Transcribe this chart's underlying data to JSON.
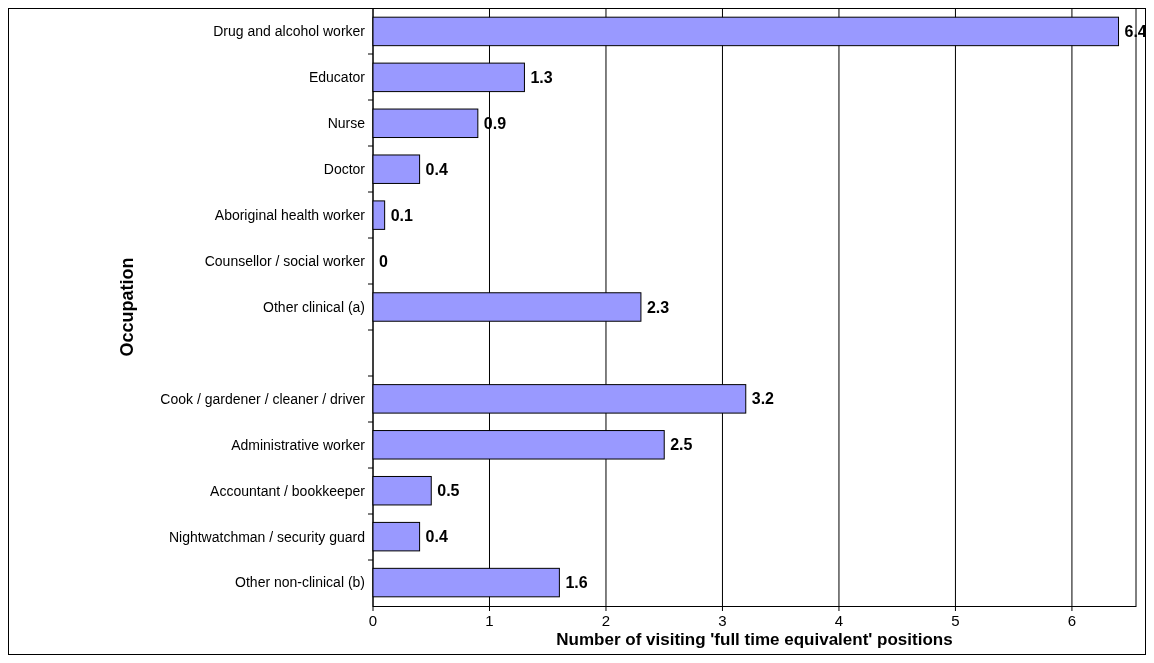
{
  "chart_data": {
    "type": "bar",
    "orientation": "horizontal",
    "xlabel": "Number of visiting 'full time equivalent' positions",
    "ylabel": "Occupation",
    "categories": [
      "Drug and alcohol worker",
      "Educator",
      "Nurse",
      "Doctor",
      "Aboriginal health worker",
      "Counsellor / social worker",
      "Other clinical (a)",
      null,
      "Cook / gardener / cleaner / driver",
      "Administrative worker",
      "Accountant / bookkeeper",
      "Nightwatchman / security guard",
      "Other non-clinical (b)"
    ],
    "values": [
      6.4,
      1.3,
      0.9,
      0.4,
      0.1,
      0,
      2.3,
      null,
      3.2,
      2.5,
      0.5,
      0.4,
      1.6
    ],
    "color": "#9999ff",
    "xlim": [
      0,
      6.55
    ],
    "xticks": [
      0,
      1,
      2,
      3,
      4,
      5,
      6
    ],
    "grid": "x",
    "data_labels": true
  }
}
